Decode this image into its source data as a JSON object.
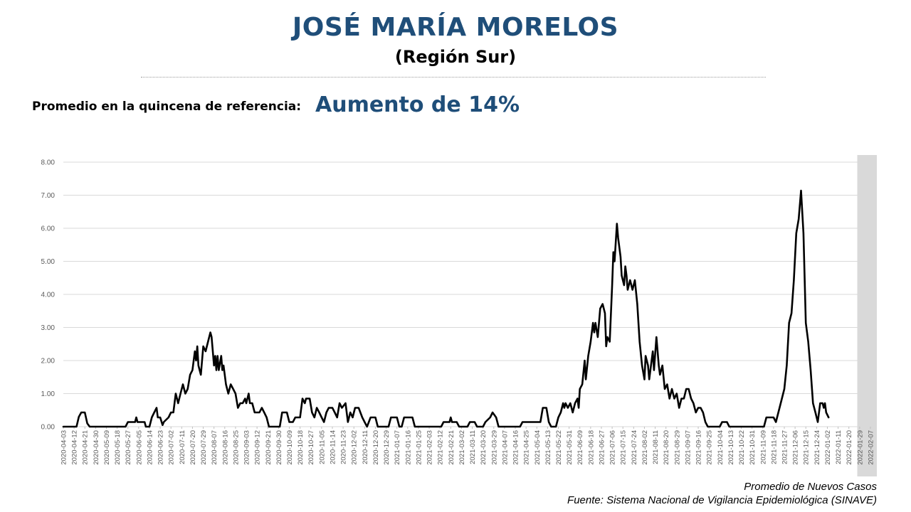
{
  "header": {
    "title": "JOSÉ MARÍA MORELOS",
    "subtitle": "(Región Sur)"
  },
  "reference": {
    "label": "Promedio en la quincena de referencia:",
    "value": "Aumento de 14%"
  },
  "footer": {
    "series_note": "Promedio de Nuevos Casos",
    "source": "Fuente: Sistema Nacional de Vigilancia Epidemiológica (SINAVE)"
  },
  "colors": {
    "title": "#1F4E79",
    "line": "#000000",
    "grid": "#d9d9d9",
    "highlight": "#d9d9d9"
  },
  "chart_data": {
    "type": "line",
    "title": "",
    "xlabel": "",
    "ylabel": "",
    "ylim": [
      0,
      8
    ],
    "yticks": [
      "0.00",
      "1.00",
      "2.00",
      "3.00",
      "4.00",
      "5.00",
      "6.00",
      "7.00",
      "8.00"
    ],
    "grid": true,
    "x_start": "2020-04-03",
    "x_end": "2022-02-10",
    "highlight_range": [
      "2022-01-27",
      "2022-02-10"
    ],
    "x_tick_labels": [
      "2020-04-03",
      "2020-04-12",
      "2020-04-21",
      "2020-04-30",
      "2020-05-09",
      "2020-05-18",
      "2020-05-27",
      "2020-06-05",
      "2020-06-14",
      "2020-06-23",
      "2020-07-02",
      "2020-07-11",
      "2020-07-20",
      "2020-07-29",
      "2020-08-07",
      "2020-08-16",
      "2020-08-25",
      "2020-09-03",
      "2020-09-12",
      "2020-09-21",
      "2020-09-30",
      "2020-10-09",
      "2020-10-18",
      "2020-10-27",
      "2020-11-05",
      "2020-11-14",
      "2020-11-23",
      "2020-12-02",
      "2020-12-11",
      "2020-12-20",
      "2020-12-29",
      "2021-01-07",
      "2021-01-16",
      "2021-01-25",
      "2021-02-03",
      "2021-02-12",
      "2021-02-21",
      "2021-03-02",
      "2021-03-11",
      "2021-03-20",
      "2021-03-29",
      "2021-04-07",
      "2021-04-16",
      "2021-04-25",
      "2021-05-04",
      "2021-05-13",
      "2021-05-22",
      "2021-05-31",
      "2021-06-09",
      "2021-06-18",
      "2021-06-27",
      "2021-07-06",
      "2021-07-15",
      "2021-07-24",
      "2021-08-02",
      "2021-08-11",
      "2021-08-20",
      "2021-08-29",
      "2021-09-07",
      "2021-09-16",
      "2021-09-25",
      "2021-10-04",
      "2021-10-13",
      "2021-10-22",
      "2021-10-31",
      "2021-11-09",
      "2021-11-18",
      "2021-11-27",
      "2021-12-06",
      "2021-12-15",
      "2021-12-24",
      "2022-01-02",
      "2022-01-11",
      "2022-01-20",
      "2022-01-29",
      "2022-02-07"
    ],
    "series": [
      {
        "name": "",
        "points": [
          [
            "2020-04-03",
            0
          ],
          [
            "2020-04-14",
            0
          ],
          [
            "2020-04-16",
            0.3
          ],
          [
            "2020-04-18",
            0.43
          ],
          [
            "2020-04-21",
            0.43
          ],
          [
            "2020-04-23",
            0.1
          ],
          [
            "2020-04-25",
            0
          ],
          [
            "2020-05-25",
            0
          ],
          [
            "2020-05-27",
            0.14
          ],
          [
            "2020-06-02",
            0.14
          ],
          [
            "2020-06-03",
            0.28
          ],
          [
            "2020-06-04",
            0.14
          ],
          [
            "2020-06-10",
            0.14
          ],
          [
            "2020-06-11",
            0
          ],
          [
            "2020-06-14",
            0
          ],
          [
            "2020-06-16",
            0.28
          ],
          [
            "2020-06-18",
            0.43
          ],
          [
            "2020-06-20",
            0.57
          ],
          [
            "2020-06-21",
            0.28
          ],
          [
            "2020-06-23",
            0.28
          ],
          [
            "2020-06-25",
            0.05
          ],
          [
            "2020-06-26",
            0.14
          ],
          [
            "2020-06-30",
            0.28
          ],
          [
            "2020-07-02",
            0.43
          ],
          [
            "2020-07-04",
            0.43
          ],
          [
            "2020-07-06",
            1.0
          ],
          [
            "2020-07-08",
            0.71
          ],
          [
            "2020-07-10",
            1.0
          ],
          [
            "2020-07-12",
            1.28
          ],
          [
            "2020-07-14",
            1.0
          ],
          [
            "2020-07-16",
            1.14
          ],
          [
            "2020-07-18",
            1.57
          ],
          [
            "2020-07-20",
            1.71
          ],
          [
            "2020-07-22",
            2.28
          ],
          [
            "2020-07-23",
            2.0
          ],
          [
            "2020-07-24",
            2.43
          ],
          [
            "2020-07-25",
            1.85
          ],
          [
            "2020-07-27",
            1.57
          ],
          [
            "2020-07-29",
            2.43
          ],
          [
            "2020-07-31",
            2.28
          ],
          [
            "2020-08-02",
            2.57
          ],
          [
            "2020-08-04",
            2.85
          ],
          [
            "2020-08-05",
            2.71
          ],
          [
            "2020-08-07",
            1.85
          ],
          [
            "2020-08-08",
            2.14
          ],
          [
            "2020-08-09",
            1.71
          ],
          [
            "2020-08-10",
            2.14
          ],
          [
            "2020-08-11",
            1.71
          ],
          [
            "2020-08-13",
            2.14
          ],
          [
            "2020-08-14",
            1.71
          ],
          [
            "2020-08-15",
            1.85
          ],
          [
            "2020-08-17",
            1.28
          ],
          [
            "2020-08-19",
            1.0
          ],
          [
            "2020-08-21",
            1.28
          ],
          [
            "2020-08-23",
            1.14
          ],
          [
            "2020-08-25",
            1.0
          ],
          [
            "2020-08-27",
            0.57
          ],
          [
            "2020-08-29",
            0.71
          ],
          [
            "2020-08-31",
            0.71
          ],
          [
            "2020-09-02",
            0.85
          ],
          [
            "2020-09-03",
            0.71
          ],
          [
            "2020-09-05",
            1.0
          ],
          [
            "2020-09-06",
            0.71
          ],
          [
            "2020-09-08",
            0.71
          ],
          [
            "2020-09-10",
            0.43
          ],
          [
            "2020-09-14",
            0.43
          ],
          [
            "2020-09-16",
            0.57
          ],
          [
            "2020-09-18",
            0.43
          ],
          [
            "2020-09-20",
            0.28
          ],
          [
            "2020-09-22",
            0
          ],
          [
            "2020-09-30",
            0
          ],
          [
            "2020-10-01",
            0
          ],
          [
            "2020-10-03",
            0.43
          ],
          [
            "2020-10-07",
            0.43
          ],
          [
            "2020-10-09",
            0.14
          ],
          [
            "2020-10-12",
            0.14
          ],
          [
            "2020-10-14",
            0.28
          ],
          [
            "2020-10-18",
            0.28
          ],
          [
            "2020-10-20",
            0.85
          ],
          [
            "2020-10-22",
            0.71
          ],
          [
            "2020-10-23",
            0.85
          ],
          [
            "2020-10-26",
            0.85
          ],
          [
            "2020-10-28",
            0.43
          ],
          [
            "2020-10-30",
            0.28
          ],
          [
            "2020-11-01",
            0.57
          ],
          [
            "2020-11-03",
            0.43
          ],
          [
            "2020-11-05",
            0.28
          ],
          [
            "2020-11-07",
            0.14
          ],
          [
            "2020-11-09",
            0.43
          ],
          [
            "2020-11-11",
            0.57
          ],
          [
            "2020-11-14",
            0.57
          ],
          [
            "2020-11-16",
            0.43
          ],
          [
            "2020-11-18",
            0.28
          ],
          [
            "2020-11-20",
            0.71
          ],
          [
            "2020-11-22",
            0.57
          ],
          [
            "2020-11-25",
            0.71
          ],
          [
            "2020-11-27",
            0.14
          ],
          [
            "2020-11-29",
            0.43
          ],
          [
            "2020-12-01",
            0.28
          ],
          [
            "2020-12-03",
            0.57
          ],
          [
            "2020-12-06",
            0.57
          ],
          [
            "2020-12-09",
            0.28
          ],
          [
            "2020-12-11",
            0.14
          ],
          [
            "2020-12-13",
            0
          ],
          [
            "2020-12-16",
            0.28
          ],
          [
            "2020-12-20",
            0.28
          ],
          [
            "2020-12-22",
            0
          ],
          [
            "2020-12-31",
            0
          ],
          [
            "2021-01-02",
            0.28
          ],
          [
            "2021-01-07",
            0.28
          ],
          [
            "2021-01-09",
            0
          ],
          [
            "2021-01-11",
            0
          ],
          [
            "2021-01-13",
            0.28
          ],
          [
            "2021-01-20",
            0.28
          ],
          [
            "2021-01-22",
            0
          ],
          [
            "2021-02-13",
            0
          ],
          [
            "2021-02-15",
            0.14
          ],
          [
            "2021-02-20",
            0.14
          ],
          [
            "2021-02-21",
            0.28
          ],
          [
            "2021-02-22",
            0.14
          ],
          [
            "2021-02-26",
            0.14
          ],
          [
            "2021-02-28",
            0
          ],
          [
            "2021-03-07",
            0
          ],
          [
            "2021-03-09",
            0.14
          ],
          [
            "2021-03-13",
            0.14
          ],
          [
            "2021-03-15",
            0
          ],
          [
            "2021-03-20",
            0
          ],
          [
            "2021-03-22",
            0.14
          ],
          [
            "2021-03-26",
            0.28
          ],
          [
            "2021-03-28",
            0.43
          ],
          [
            "2021-03-31",
            0.28
          ],
          [
            "2021-04-02",
            0
          ],
          [
            "2021-04-20",
            0
          ],
          [
            "2021-04-22",
            0.14
          ],
          [
            "2021-05-07",
            0.14
          ],
          [
            "2021-05-09",
            0.57
          ],
          [
            "2021-05-12",
            0.57
          ],
          [
            "2021-05-14",
            0.14
          ],
          [
            "2021-05-16",
            0
          ],
          [
            "2021-05-20",
            0
          ],
          [
            "2021-05-22",
            0.28
          ],
          [
            "2021-05-24",
            0.43
          ],
          [
            "2021-05-26",
            0.71
          ],
          [
            "2021-05-27",
            0.57
          ],
          [
            "2021-05-28",
            0.71
          ],
          [
            "2021-05-30",
            0.57
          ],
          [
            "2021-06-01",
            0.71
          ],
          [
            "2021-06-03",
            0.43
          ],
          [
            "2021-06-05",
            0.71
          ],
          [
            "2021-06-07",
            0.85
          ],
          [
            "2021-06-08",
            0.57
          ],
          [
            "2021-06-09",
            1.14
          ],
          [
            "2021-06-11",
            1.28
          ],
          [
            "2021-06-13",
            2.0
          ],
          [
            "2021-06-14",
            1.43
          ],
          [
            "2021-06-16",
            2.14
          ],
          [
            "2021-06-18",
            2.57
          ],
          [
            "2021-06-20",
            3.14
          ],
          [
            "2021-06-21",
            2.85
          ],
          [
            "2021-06-22",
            3.14
          ],
          [
            "2021-06-24",
            2.71
          ],
          [
            "2021-06-26",
            3.57
          ],
          [
            "2021-06-28",
            3.71
          ],
          [
            "2021-06-30",
            3.43
          ],
          [
            "2021-07-01",
            2.43
          ],
          [
            "2021-07-02",
            2.71
          ],
          [
            "2021-07-04",
            2.57
          ],
          [
            "2021-07-06",
            4.28
          ],
          [
            "2021-07-07",
            5.28
          ],
          [
            "2021-07-08",
            5.0
          ],
          [
            "2021-07-10",
            6.14
          ],
          [
            "2021-07-11",
            5.71
          ],
          [
            "2021-07-13",
            5.14
          ],
          [
            "2021-07-14",
            4.57
          ],
          [
            "2021-07-16",
            4.28
          ],
          [
            "2021-07-17",
            4.85
          ],
          [
            "2021-07-18",
            4.57
          ],
          [
            "2021-07-19",
            4.14
          ],
          [
            "2021-07-21",
            4.43
          ],
          [
            "2021-07-23",
            4.14
          ],
          [
            "2021-07-25",
            4.43
          ],
          [
            "2021-07-27",
            3.71
          ],
          [
            "2021-07-29",
            2.57
          ],
          [
            "2021-07-31",
            1.85
          ],
          [
            "2021-08-02",
            1.43
          ],
          [
            "2021-08-03",
            2.14
          ],
          [
            "2021-08-05",
            1.85
          ],
          [
            "2021-08-06",
            1.43
          ],
          [
            "2021-08-09",
            2.28
          ],
          [
            "2021-08-10",
            1.71
          ],
          [
            "2021-08-12",
            2.71
          ],
          [
            "2021-08-14",
            1.85
          ],
          [
            "2021-08-15",
            1.57
          ],
          [
            "2021-08-17",
            1.85
          ],
          [
            "2021-08-19",
            1.14
          ],
          [
            "2021-08-21",
            1.28
          ],
          [
            "2021-08-23",
            0.85
          ],
          [
            "2021-08-25",
            1.14
          ],
          [
            "2021-08-27",
            0.85
          ],
          [
            "2021-08-29",
            1.0
          ],
          [
            "2021-08-31",
            0.57
          ],
          [
            "2021-09-02",
            0.85
          ],
          [
            "2021-09-04",
            0.85
          ],
          [
            "2021-09-06",
            1.14
          ],
          [
            "2021-09-08",
            1.14
          ],
          [
            "2021-09-10",
            0.85
          ],
          [
            "2021-09-12",
            0.71
          ],
          [
            "2021-09-14",
            0.43
          ],
          [
            "2021-09-16",
            0.57
          ],
          [
            "2021-09-18",
            0.57
          ],
          [
            "2021-09-20",
            0.43
          ],
          [
            "2021-09-22",
            0.14
          ],
          [
            "2021-09-24",
            0
          ],
          [
            "2021-10-04",
            0
          ],
          [
            "2021-10-06",
            0.14
          ],
          [
            "2021-10-10",
            0.14
          ],
          [
            "2021-10-12",
            0
          ],
          [
            "2021-11-10",
            0
          ],
          [
            "2021-11-12",
            0.28
          ],
          [
            "2021-11-18",
            0.28
          ],
          [
            "2021-11-20",
            0.14
          ],
          [
            "2021-11-23",
            0.57
          ],
          [
            "2021-11-25",
            0.85
          ],
          [
            "2021-11-27",
            1.14
          ],
          [
            "2021-11-29",
            1.85
          ],
          [
            "2021-12-01",
            3.14
          ],
          [
            "2021-12-03",
            3.43
          ],
          [
            "2021-12-05",
            4.43
          ],
          [
            "2021-12-07",
            5.85
          ],
          [
            "2021-12-09",
            6.28
          ],
          [
            "2021-12-11",
            7.14
          ],
          [
            "2021-12-13",
            5.85
          ],
          [
            "2021-12-15",
            3.14
          ],
          [
            "2021-12-17",
            2.57
          ],
          [
            "2021-12-19",
            1.71
          ],
          [
            "2021-12-21",
            0.71
          ],
          [
            "2021-12-23",
            0.43
          ],
          [
            "2021-12-25",
            0.14
          ],
          [
            "2021-12-27",
            0.71
          ],
          [
            "2021-12-29",
            0.71
          ],
          [
            "2021-12-30",
            0.57
          ],
          [
            "2021-12-31",
            0.71
          ],
          [
            "2022-01-01",
            0.43
          ],
          [
            "2022-01-03",
            0.28
          ]
        ]
      }
    ]
  }
}
